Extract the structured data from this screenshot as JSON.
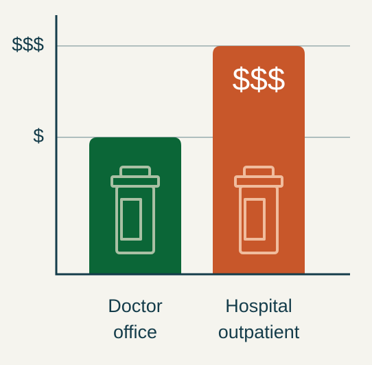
{
  "chart_data": {
    "type": "bar",
    "categories": [
      "Doctor office",
      "Hospital outpatient"
    ],
    "values": [
      60,
      100
    ],
    "value_labels": [
      null,
      "$$$"
    ],
    "colors": [
      "#0b6637",
      "#c8572a"
    ],
    "ylim": [
      0,
      113.5
    ],
    "yticks": [
      {
        "value": 60,
        "label": "$"
      },
      {
        "value": 100,
        "label": "$$$"
      }
    ],
    "grid": true
  }
}
